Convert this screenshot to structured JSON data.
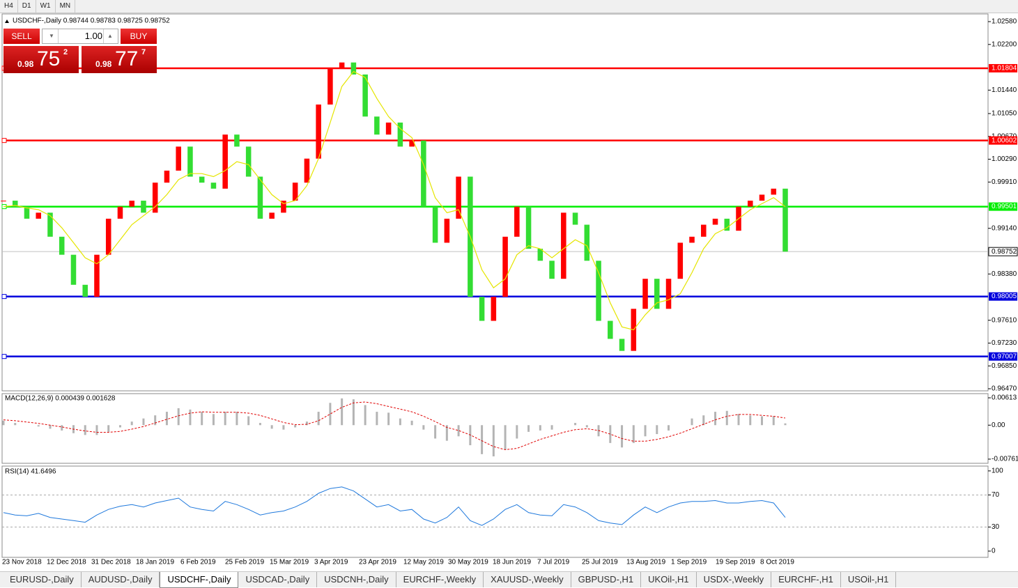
{
  "toolbar": {
    "timeframes": [
      "H4",
      "D1",
      "W1",
      "MN"
    ]
  },
  "trade_panel": {
    "sell_label": "SELL",
    "lot": "1.00",
    "buy_label": "BUY",
    "sell_price": {
      "big": "0.98",
      "main": "75",
      "pip": "2"
    },
    "buy_price": {
      "big": "0.98",
      "main": "77",
      "pip": "7"
    }
  },
  "chart_data": [
    {
      "type": "candlestick",
      "title": "USDCHF-,Daily 0.98744 0.98783 0.98725 0.98752",
      "up_color": "#ff0000",
      "down_color": "#33dd33",
      "closes": [
        0.996,
        0.995,
        0.993,
        0.994,
        0.99,
        0.987,
        0.982,
        0.98,
        0.987,
        0.993,
        0.995,
        0.996,
        0.994,
        0.999,
        1.001,
        1.005,
        1.0,
        0.999,
        0.998,
        1.007,
        1.005,
        1.0,
        0.993,
        0.994,
        0.996,
        0.999,
        1.003,
        1.012,
        1.018,
        1.019,
        1.017,
        1.01,
        1.007,
        1.009,
        1.005,
        1.006,
        0.995,
        0.989,
        0.993,
        1.0,
        0.98,
        0.976,
        0.98,
        0.99,
        0.995,
        0.988,
        0.986,
        0.983,
        0.994,
        0.992,
        0.986,
        0.976,
        0.973,
        0.971,
        0.978,
        0.983,
        0.978,
        0.983,
        0.989,
        0.99,
        0.992,
        0.993,
        0.991,
        0.995,
        0.996,
        0.997,
        0.998,
        0.98752
      ],
      "ma": {
        "color": "#e5e500",
        "values": [
          0.995,
          0.9952,
          0.9948,
          0.9945,
          0.9935,
          0.9915,
          0.989,
          0.9865,
          0.9855,
          0.987,
          0.9895,
          0.992,
          0.9935,
          0.995,
          0.997,
          0.9995,
          1.0005,
          1.0005,
          1.0,
          1.001,
          1.0025,
          1.002,
          0.9995,
          0.997,
          0.9955,
          0.996,
          0.9985,
          1.003,
          1.009,
          1.015,
          1.0175,
          1.0165,
          1.013,
          1.01,
          1.008,
          1.0065,
          1.002,
          0.9965,
          0.994,
          0.9945,
          0.99,
          0.9845,
          0.9815,
          0.983,
          0.987,
          0.9885,
          0.988,
          0.9865,
          0.988,
          0.9895,
          0.9885,
          0.984,
          0.979,
          0.975,
          0.9745,
          0.977,
          0.979,
          0.9795,
          0.9805,
          0.984,
          0.988,
          0.9905,
          0.9915,
          0.993,
          0.9945,
          0.9955,
          0.9965,
          0.995
        ]
      },
      "ylim": [
        0.96435,
        1.02708
      ],
      "yticks": [
        {
          "value": 1.0258,
          "label": "1.02580"
        },
        {
          "value": 1.022,
          "label": "1.02200"
        },
        {
          "value": 1.0144,
          "label": "1.01440"
        },
        {
          "value": 1.0105,
          "label": "1.01050"
        },
        {
          "value": 1.0067,
          "label": "1.00670"
        },
        {
          "value": 1.0029,
          "label": "1.00290"
        },
        {
          "value": 0.9991,
          "label": "0.99910"
        },
        {
          "value": 0.9914,
          "label": "0.99140"
        },
        {
          "value": 0.9838,
          "label": "0.98380"
        },
        {
          "value": 0.9761,
          "label": "0.97610"
        },
        {
          "value": 0.9723,
          "label": "0.97230"
        },
        {
          "value": 0.9685,
          "label": "0.96850"
        },
        {
          "value": 0.9647,
          "label": "0.96470"
        }
      ],
      "levels": [
        {
          "value": 1.01804,
          "color": "#ff0000"
        },
        {
          "value": 1.00602,
          "color": "#ff0000"
        },
        {
          "value": 0.99501,
          "color": "#00ee00"
        },
        {
          "value": 0.98005,
          "color": "#0000dd"
        },
        {
          "value": 0.97007,
          "color": "#0000dd"
        }
      ],
      "current_price": 0.98752,
      "x_labels": [
        "23 Nov 2018",
        "12 Dec 2018",
        "31 Dec 2018",
        "18 Jan 2019",
        "6 Feb 2019",
        "25 Feb 2019",
        "15 Mar 2019",
        "3 Apr 2019",
        "23 Apr 2019",
        "12 May 2019",
        "30 May 2019",
        "18 Jun 2019",
        "7 Jul 2019",
        "25 Jul 2019",
        "13 Aug 2019",
        "1 Sep 2019",
        "19 Sep 2019",
        "8 Oct 2019"
      ]
    },
    {
      "type": "macd",
      "title": "MACD(12,26,9) 0.000439 0.001628",
      "histogram": [
        0.001,
        0.0005,
        0.0,
        -0.0003,
        -0.0008,
        -0.0012,
        -0.0018,
        -0.0022,
        -0.0022,
        -0.0015,
        -0.0005,
        0.0008,
        0.0015,
        0.0022,
        0.003,
        0.0038,
        0.0035,
        0.003,
        0.0025,
        0.003,
        0.003,
        0.002,
        0.0005,
        -0.0008,
        -0.001,
        -0.0005,
        0.0008,
        0.003,
        0.005,
        0.006,
        0.0058,
        0.0045,
        0.003,
        0.0028,
        0.0015,
        0.001,
        -0.001,
        -0.003,
        -0.0035,
        -0.0025,
        -0.0045,
        -0.0065,
        -0.007,
        -0.0055,
        -0.003,
        -0.0015,
        -0.0012,
        -0.001,
        0.0,
        0.0005,
        -0.0005,
        -0.0025,
        -0.004,
        -0.005,
        -0.004,
        -0.0025,
        -0.002,
        -0.0012,
        0.0,
        0.0015,
        0.0022,
        0.003,
        0.0032,
        0.0025,
        0.0022,
        0.002,
        0.002,
        0.0004
      ],
      "signal": [
        0.0012,
        0.001,
        0.0007,
        0.0004,
        0.0,
        -0.0004,
        -0.0009,
        -0.0013,
        -0.0016,
        -0.0016,
        -0.0014,
        -0.0009,
        -0.0003,
        0.0005,
        0.0013,
        0.0021,
        0.0027,
        0.003,
        0.0029,
        0.0029,
        0.0029,
        0.0027,
        0.0022,
        0.0014,
        0.0006,
        0.0001,
        0.0002,
        0.001,
        0.0025,
        0.004,
        0.005,
        0.0052,
        0.0048,
        0.0042,
        0.0036,
        0.003,
        0.002,
        0.0008,
        -0.0005,
        -0.0012,
        -0.0022,
        -0.0035,
        -0.0048,
        -0.0055,
        -0.0052,
        -0.0042,
        -0.0032,
        -0.0024,
        -0.0016,
        -0.001,
        -0.0008,
        -0.0012,
        -0.002,
        -0.003,
        -0.0036,
        -0.0036,
        -0.0032,
        -0.0026,
        -0.0018,
        -0.0008,
        0.0002,
        0.0012,
        0.002,
        0.0024,
        0.0024,
        0.0022,
        0.002,
        0.0016
      ],
      "histogram_color": "#b4b4b4",
      "signal_color": "#e00000",
      "ylim": [
        -0.00855,
        0.00707
      ],
      "yticks": [
        0.00613,
        {
          "value": 0,
          "label": "0.00"
        },
        -0.007612
      ]
    },
    {
      "type": "rsi",
      "title": "RSI(14) 41.6496",
      "color": "#1e78dc",
      "values": [
        48,
        45,
        44,
        47,
        42,
        40,
        38,
        36,
        45,
        52,
        56,
        58,
        55,
        60,
        63,
        66,
        55,
        52,
        50,
        62,
        58,
        52,
        45,
        48,
        50,
        55,
        62,
        72,
        78,
        80,
        75,
        65,
        55,
        58,
        50,
        52,
        40,
        35,
        42,
        55,
        38,
        32,
        40,
        52,
        58,
        48,
        45,
        44,
        58,
        55,
        48,
        38,
        35,
        33,
        45,
        55,
        48,
        55,
        60,
        62,
        62,
        63,
        60,
        60,
        62,
        63,
        60,
        42
      ],
      "levels": [
        70,
        30
      ],
      "ylim": [
        -7.8,
        106
      ],
      "yticks": [
        100,
        70,
        30,
        0
      ]
    }
  ],
  "tabs": [
    "EURUSD-,Daily",
    "AUDUSD-,Daily",
    "USDCHF-,Daily",
    "USDCAD-,Daily",
    "USDCNH-,Daily",
    "EURCHF-,Weekly",
    "XAUUSD-,Weekly",
    "GBPUSD-,H1",
    "UKOil-,H1",
    "USDX-,Weekly",
    "EURCHF-,H1",
    "USOil-,H1"
  ],
  "active_tab": 2
}
